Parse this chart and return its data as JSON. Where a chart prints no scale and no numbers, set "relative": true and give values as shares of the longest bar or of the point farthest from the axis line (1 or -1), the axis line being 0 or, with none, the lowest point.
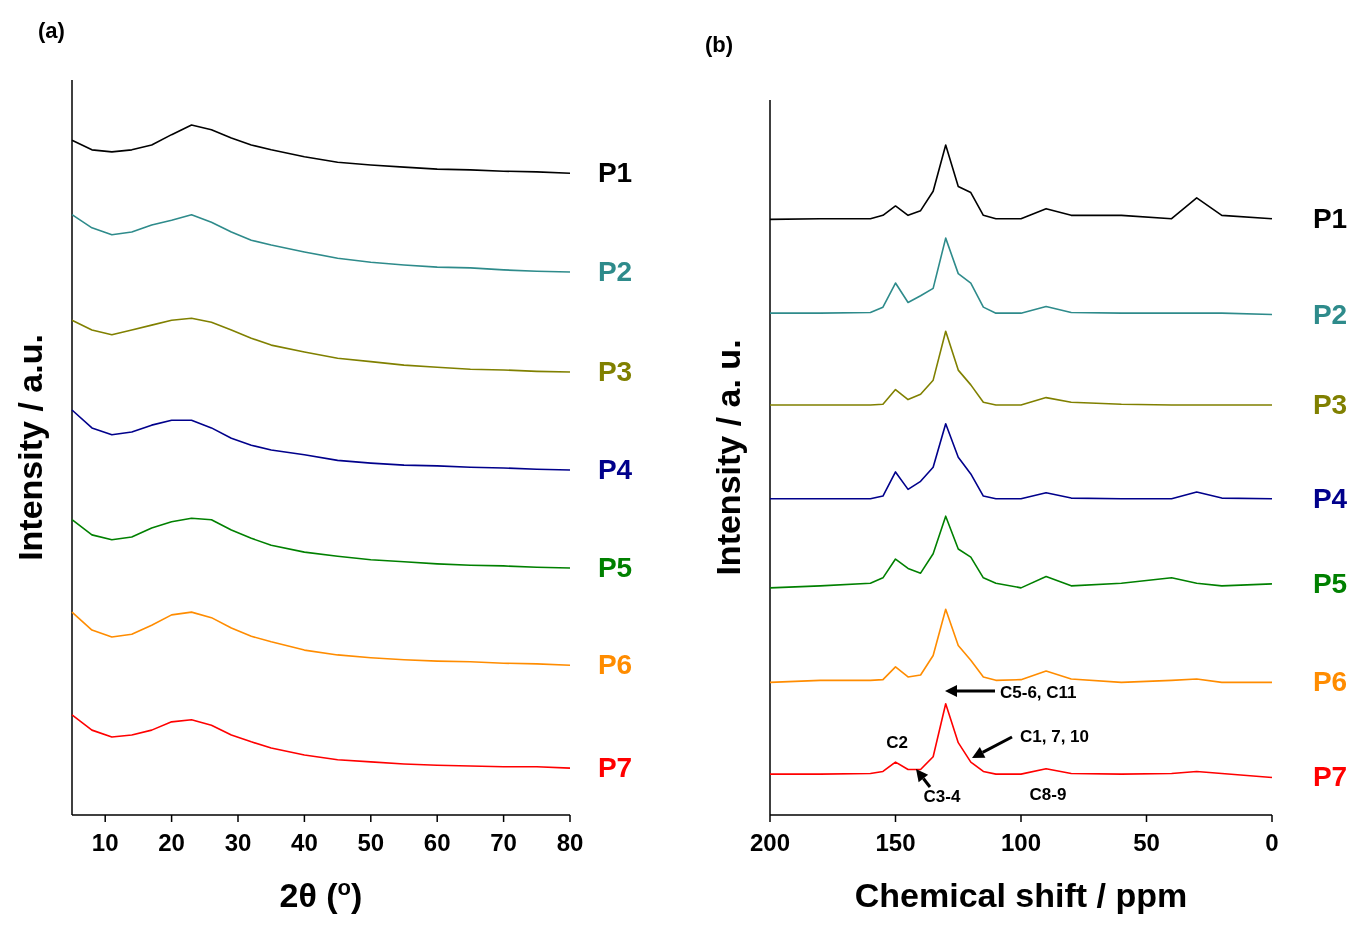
{
  "chart_data": [
    {
      "type": "line",
      "title": "(a)",
      "xlabel": "2θ ($^{o}$)",
      "ylabel": "Intensity / a.u.",
      "relative": true,
      "legend": false,
      "xlim": [
        5,
        80
      ],
      "xticks": [
        10,
        20,
        30,
        40,
        50,
        60,
        70,
        80
      ],
      "x": [
        5,
        8,
        11,
        14,
        17,
        20,
        23,
        26,
        29,
        32,
        35,
        40,
        45,
        50,
        55,
        60,
        65,
        70,
        75,
        80
      ],
      "series": [
        {
          "name": "P1",
          "color": "#000000",
          "values": [
            0.978,
            0.964,
            0.961,
            0.964,
            0.971,
            0.986,
            1,
            0.993,
            0.981,
            0.971,
            0.964,
            0.954,
            0.946,
            0.942,
            0.939,
            0.936,
            0.935,
            0.933,
            0.932,
            0.93
          ]
        },
        {
          "name": "P2",
          "color": "#2e8b8b",
          "values": [
            0.87,
            0.851,
            0.841,
            0.845,
            0.855,
            0.862,
            0.87,
            0.859,
            0.845,
            0.833,
            0.826,
            0.816,
            0.807,
            0.801,
            0.797,
            0.794,
            0.793,
            0.79,
            0.788,
            0.787
          ]
        },
        {
          "name": "P3",
          "color": "#808000",
          "values": [
            0.717,
            0.703,
            0.696,
            0.703,
            0.71,
            0.717,
            0.72,
            0.714,
            0.703,
            0.691,
            0.681,
            0.671,
            0.662,
            0.657,
            0.652,
            0.649,
            0.646,
            0.645,
            0.643,
            0.642
          ]
        },
        {
          "name": "P4",
          "color": "#00008b",
          "values": [
            0.587,
            0.561,
            0.551,
            0.555,
            0.565,
            0.572,
            0.572,
            0.561,
            0.546,
            0.536,
            0.529,
            0.522,
            0.514,
            0.51,
            0.507,
            0.506,
            0.504,
            0.503,
            0.501,
            0.5
          ]
        },
        {
          "name": "P5",
          "color": "#008000",
          "values": [
            0.428,
            0.406,
            0.399,
            0.403,
            0.416,
            0.425,
            0.43,
            0.428,
            0.413,
            0.401,
            0.391,
            0.381,
            0.375,
            0.37,
            0.367,
            0.364,
            0.362,
            0.361,
            0.359,
            0.358
          ]
        },
        {
          "name": "P6",
          "color": "#ff8c00",
          "values": [
            0.294,
            0.268,
            0.258,
            0.262,
            0.275,
            0.29,
            0.294,
            0.286,
            0.271,
            0.259,
            0.251,
            0.239,
            0.232,
            0.228,
            0.225,
            0.223,
            0.222,
            0.22,
            0.219,
            0.217
          ]
        },
        {
          "name": "P7",
          "color": "#ff0000",
          "values": [
            0.145,
            0.123,
            0.113,
            0.116,
            0.123,
            0.135,
            0.138,
            0.13,
            0.116,
            0.106,
            0.097,
            0.087,
            0.08,
            0.077,
            0.074,
            0.072,
            0.071,
            0.07,
            0.07,
            0.068
          ]
        }
      ]
    },
    {
      "type": "line",
      "title": "(b)",
      "xlabel": "Chemical shift / ppm",
      "ylabel": "Intensity / a. u.",
      "relative": true,
      "legend": false,
      "xlim": [
        200,
        0
      ],
      "xticks": [
        200,
        150,
        100,
        50,
        0
      ],
      "x": [
        200,
        180,
        160,
        155,
        150,
        145,
        140,
        135,
        130,
        125,
        120,
        115,
        110,
        100,
        90,
        80,
        60,
        40,
        30,
        20,
        0
      ],
      "series": [
        {
          "name": "P1",
          "color": "#000000",
          "values": [
            0.889,
            0.89,
            0.89,
            0.895,
            0.909,
            0.895,
            0.902,
            0.931,
            1,
            0.938,
            0.929,
            0.895,
            0.89,
            0.89,
            0.905,
            0.895,
            0.895,
            0.89,
            0.921,
            0.895,
            0.89
          ]
        },
        {
          "name": "P2",
          "color": "#2e8b8b",
          "values": [
            0.749,
            0.749,
            0.75,
            0.758,
            0.794,
            0.765,
            0.775,
            0.786,
            0.861,
            0.808,
            0.794,
            0.758,
            0.749,
            0.749,
            0.759,
            0.75,
            0.749,
            0.749,
            0.749,
            0.749,
            0.747
          ]
        },
        {
          "name": "P3",
          "color": "#808000",
          "values": [
            0.612,
            0.612,
            0.612,
            0.613,
            0.635,
            0.62,
            0.628,
            0.649,
            0.722,
            0.664,
            0.642,
            0.616,
            0.612,
            0.612,
            0.623,
            0.616,
            0.613,
            0.612,
            0.612,
            0.612,
            0.612
          ]
        },
        {
          "name": "P4",
          "color": "#00008b",
          "values": [
            0.472,
            0.472,
            0.472,
            0.476,
            0.512,
            0.486,
            0.498,
            0.519,
            0.584,
            0.534,
            0.509,
            0.476,
            0.472,
            0.472,
            0.481,
            0.473,
            0.472,
            0.472,
            0.482,
            0.473,
            0.472
          ]
        },
        {
          "name": "P5",
          "color": "#008000",
          "values": [
            0.339,
            0.342,
            0.346,
            0.354,
            0.382,
            0.368,
            0.361,
            0.39,
            0.446,
            0.397,
            0.385,
            0.354,
            0.346,
            0.339,
            0.356,
            0.342,
            0.346,
            0.354,
            0.346,
            0.342,
            0.345
          ]
        },
        {
          "name": "P6",
          "color": "#ff8c00",
          "values": [
            0.198,
            0.201,
            0.201,
            0.202,
            0.221,
            0.206,
            0.209,
            0.238,
            0.307,
            0.253,
            0.231,
            0.206,
            0.201,
            0.202,
            0.215,
            0.203,
            0.198,
            0.201,
            0.203,
            0.198,
            0.198
          ]
        },
        {
          "name": "P7",
          "color": "#ff0000",
          "values": [
            0.061,
            0.061,
            0.062,
            0.065,
            0.079,
            0.068,
            0.068,
            0.087,
            0.166,
            0.108,
            0.079,
            0.065,
            0.061,
            0.061,
            0.069,
            0.062,
            0.061,
            0.062,
            0.065,
            0.062,
            0.056
          ]
        }
      ],
      "annotations": [
        "C5-6, C11",
        "C1, 7, 10",
        "C2",
        "C3-4",
        "C8-9"
      ]
    }
  ]
}
